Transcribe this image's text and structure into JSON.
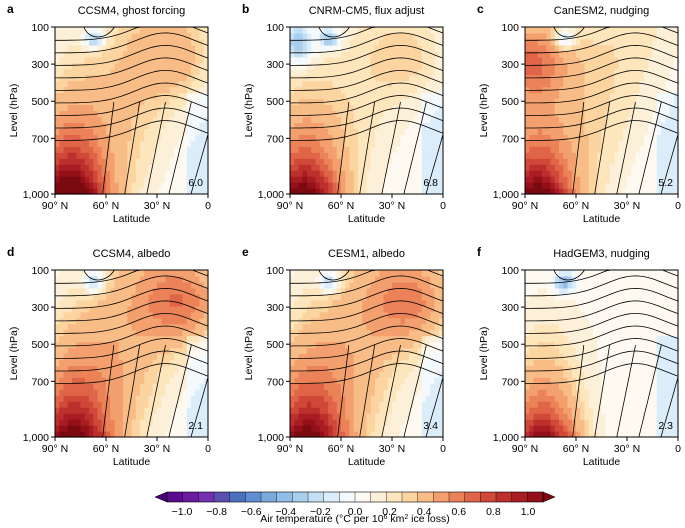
{
  "chart_data": [
    {
      "panel": "a",
      "title": "CCSM4, ghost forcing",
      "type": "heatmap",
      "xlabel": "Latitude",
      "ylabel": "Level (hPa)",
      "xticks": [
        "90° N",
        "60° N",
        "30° N",
        "0"
      ],
      "yticks": [
        "100",
        "300",
        "500",
        "700",
        "1,000"
      ],
      "xlim": [
        90,
        0
      ],
      "ylim": [
        1000,
        100
      ],
      "value_label": "6.0",
      "field": {
        "base": 0.25,
        "surface_amp": 1.15,
        "surface_lat": 82,
        "upper_amp": 0.15,
        "upper_lat": 20,
        "polar_low_top": 0.0
      }
    },
    {
      "panel": "b",
      "title": "CNRM-CM5, flux adjust",
      "type": "heatmap",
      "xlabel": "Latitude",
      "ylabel": "Level (hPa)",
      "xticks": [
        "90° N",
        "60° N",
        "30° N",
        "0"
      ],
      "yticks": [
        "100",
        "300",
        "500",
        "700",
        "1,000"
      ],
      "xlim": [
        90,
        0
      ],
      "ylim": [
        1000,
        100
      ],
      "value_label": "6.8",
      "field": {
        "base": 0.15,
        "surface_amp": 1.05,
        "surface_lat": 82,
        "upper_amp": 0.1,
        "upper_lat": 20,
        "polar_low_top": -0.25
      }
    },
    {
      "panel": "c",
      "title": "CanESM2, nudging",
      "type": "heatmap",
      "xlabel": "Latitude",
      "ylabel": "Level (hPa)",
      "xticks": [
        "90° N",
        "60° N",
        "30° N",
        "0"
      ],
      "yticks": [
        "100",
        "300",
        "500",
        "700",
        "1,000"
      ],
      "xlim": [
        90,
        0
      ],
      "ylim": [
        1000,
        100
      ],
      "value_label": "5.2",
      "field": {
        "base": 0.2,
        "surface_amp": 1.0,
        "surface_lat": 84,
        "upper_amp": 0.45,
        "upper_lat": 88,
        "polar_low_top": 0.0
      }
    },
    {
      "panel": "d",
      "title": "CCSM4, albedo",
      "type": "heatmap",
      "xlabel": "Latitude",
      "ylabel": "Level (hPa)",
      "xticks": [
        "90° N",
        "60° N",
        "30° N",
        "0"
      ],
      "yticks": [
        "100",
        "300",
        "500",
        "700",
        "1,000"
      ],
      "xlim": [
        90,
        0
      ],
      "ylim": [
        1000,
        100
      ],
      "value_label": "2.1",
      "field": {
        "base": 0.33,
        "surface_amp": 0.85,
        "surface_lat": 80,
        "upper_amp": 0.35,
        "upper_lat": 15,
        "polar_low_top": 0.0
      }
    },
    {
      "panel": "e",
      "title": "CESM1, albedo",
      "type": "heatmap",
      "xlabel": "Latitude",
      "ylabel": "Level (hPa)",
      "xticks": [
        "90° N",
        "60° N",
        "30° N",
        "0"
      ],
      "yticks": [
        "100",
        "300",
        "500",
        "700",
        "1,000"
      ],
      "xlim": [
        90,
        0
      ],
      "ylim": [
        1000,
        100
      ],
      "value_label": "3.4",
      "field": {
        "base": 0.32,
        "surface_amp": 0.85,
        "surface_lat": 80,
        "upper_amp": 0.3,
        "upper_lat": 18,
        "polar_low_top": 0.0
      }
    },
    {
      "panel": "f",
      "title": "HadGEM3, nudging",
      "type": "heatmap",
      "xlabel": "Latitude",
      "ylabel": "Level (hPa)",
      "xticks": [
        "90° N",
        "60° N",
        "30° N",
        "0"
      ],
      "yticks": [
        "100",
        "300",
        "500",
        "700",
        "1,000"
      ],
      "xlim": [
        90,
        0
      ],
      "ylim": [
        1000,
        100
      ],
      "value_label": "2.3",
      "field": {
        "base": 0.05,
        "surface_amp": 0.95,
        "surface_lat": 80,
        "upper_amp": 0.0,
        "upper_lat": 20,
        "polar_low_top": 0.0
      }
    }
  ],
  "colorbar": {
    "label_prefix": "Air temperature (°C per 10",
    "label_exp": "6",
    "label_unit": " km",
    "label_exp2": "2",
    "label_suffix": " ice loss)",
    "ticks": [
      "−1.0",
      "−0.8",
      "−0.6",
      "−0.4",
      "−0.2",
      "0.0",
      "0.2",
      "0.4",
      "0.6",
      "0.8",
      "1.0"
    ],
    "tick_values": [
      -1.0,
      -0.8,
      -0.6,
      -0.4,
      -0.2,
      0.0,
      0.2,
      0.4,
      0.6,
      0.8,
      1.0
    ],
    "levels": [
      -1.0,
      -0.9,
      -0.8,
      -0.7,
      -0.6,
      -0.5,
      -0.4,
      -0.3,
      -0.2,
      -0.15,
      -0.1,
      -0.05,
      0.0,
      0.05,
      0.1,
      0.15,
      0.2,
      0.3,
      0.4,
      0.5,
      0.6,
      0.7,
      0.8,
      0.9,
      1.0
    ],
    "colors": [
      "#5a0a8c",
      "#6a1aa0",
      "#7430b0",
      "#5a50b0",
      "#4a70c0",
      "#5f8fd0",
      "#7aa9dc",
      "#92bde6",
      "#a9cfee",
      "#c2dff4",
      "#dbecfa",
      "#f4f9fd",
      "#fefaf2",
      "#fdf0d8",
      "#fde5bc",
      "#fbd4a0",
      "#f8bc86",
      "#f3a06e",
      "#eb8258",
      "#e06448",
      "#d04838",
      "#bd2f2d",
      "#a81c23",
      "#931019"
    ],
    "under_color": "#4a0078",
    "over_color": "#7a0a10"
  }
}
